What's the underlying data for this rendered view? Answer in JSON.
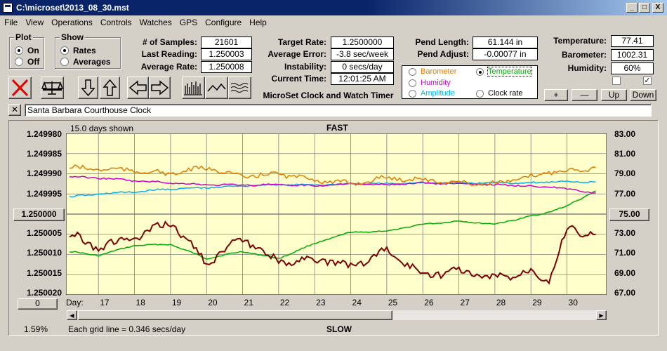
{
  "window": {
    "title": "C:\\microset\\2013_08_30.mst",
    "minimize": "_",
    "maximize": "□",
    "close": "X"
  },
  "menu": [
    "File",
    "View",
    "Operations",
    "Controls",
    "Watches",
    "GPS",
    "Configure",
    "Help"
  ],
  "plot_group": {
    "title": "Plot",
    "on": "On",
    "off": "Off",
    "selected": "On"
  },
  "show_group": {
    "title": "Show",
    "rates": "Rates",
    "averages": "Averages",
    "selected": "Rates"
  },
  "stats": {
    "samples_label": "# of Samples:",
    "samples": "21601",
    "last_label": "Last Reading:",
    "last": "1.250003",
    "avg_label": "Average Rate:",
    "avg": "1.250008",
    "target_label": "Target Rate:",
    "target": "1.2500000",
    "avg_err_label": "Average Error:",
    "avg_err": "-3.8 sec/week",
    "instab_label": "Instability:",
    "instab": "0 secs/day",
    "time_label": "Current Time:",
    "time": "12:01:25 AM",
    "pend_len_label": "Pend Length:",
    "pend_len": "61.144 in",
    "pend_adj_label": "Pend Adjust:",
    "pend_adj": "-0.00077 in",
    "temp_label": "Temperature:",
    "temp": "77.41",
    "baro_label": "Barometer:",
    "baro": "1002.31",
    "hum_label": "Humidity:",
    "hum": "60%"
  },
  "app_name": "MicroSet Clock and Watch Timer",
  "selector": {
    "barometer": "Barometer",
    "temperature": "Temperature",
    "humidity": "Humidity",
    "amplitude": "Amplitude",
    "clock_rate": "Clock rate",
    "selected": "Temperature",
    "colors": {
      "barometer": "#e07b00",
      "temperature": "#00aa00",
      "humidity": "#cc00cc",
      "amplitude": "#00b0f0",
      "clock_rate": "#000000"
    }
  },
  "scale_buttons": {
    "plus": "+",
    "minus": "—",
    "up": "Up",
    "down": "Down"
  },
  "checkboxes": [
    false,
    true
  ],
  "watch_name": "Santa Barbara Courthouse Clock",
  "chart": {
    "days_shown": "15.0 days shown",
    "top_label": "FAST",
    "bottom_label": "SLOW",
    "grid_note": "Each grid line = 0.346 secs/day",
    "percent": "1.59%",
    "left_button": "1.250000",
    "right_button": "75.00",
    "zero_button": "0",
    "day_label": "Day:",
    "left_ticks": [
      "1.249980",
      "1.249985",
      "1.249990",
      "1.249995",
      "1.250000",
      "1.250005",
      "1.250010",
      "1.250015",
      "1.250020"
    ],
    "right_ticks": [
      "83.00",
      "81.00",
      "79.00",
      "77.00",
      "75.00",
      "73.00",
      "71.00",
      "69.00",
      "67.00"
    ],
    "days": [
      "17",
      "18",
      "19",
      "20",
      "21",
      "22",
      "23",
      "24",
      "25",
      "26",
      "27",
      "28",
      "29",
      "30"
    ],
    "bg_color": "#ffffcc",
    "grid_color": "#808080"
  },
  "chart_data": {
    "type": "line",
    "x_label": "Day:",
    "x": [
      16.2,
      17,
      18,
      19,
      20,
      21,
      22,
      23,
      24,
      25,
      26,
      27,
      28,
      29,
      29.5,
      30,
      30.8
    ],
    "ylim_left": [
      1.24998,
      1.25002
    ],
    "ylim_right": [
      67,
      83
    ],
    "series": [
      {
        "name": "Clock rate",
        "axis": "left",
        "color": "#7b0000",
        "values": [
          1.250005,
          1.250008,
          1.250006,
          1.250002,
          1.250012,
          1.250006,
          1.250012,
          1.250011,
          1.250013,
          1.250009,
          1.250015,
          1.250014,
          1.250016,
          1.250014,
          1.250016,
          1.250004,
          1.250005
        ]
      },
      {
        "name": "Barometer",
        "axis": "right",
        "color": "#e07b00",
        "values": [
          79.6,
          79.5,
          79.3,
          79.0,
          79.6,
          78.7,
          79.0,
          78.4,
          78.0,
          78.6,
          78.4,
          78.1,
          78.0,
          78.7,
          79.2,
          79.3,
          79.6
        ]
      },
      {
        "name": "Humidity",
        "axis": "right",
        "color": "#cc00cc",
        "values": [
          78.7,
          78.6,
          78.3,
          78.1,
          77.9,
          77.9,
          77.9,
          77.8,
          78.0,
          77.9,
          78.1,
          78.0,
          77.9,
          77.8,
          77.7,
          77.5,
          77.1
        ]
      },
      {
        "name": "Amplitude",
        "axis": "right",
        "color": "#00b0f0",
        "values": [
          76.7,
          77.0,
          77.2,
          77.5,
          77.6,
          77.8,
          77.9,
          77.9,
          78.0,
          78.0,
          78.1,
          78.1,
          78.1,
          78.1,
          78.2,
          78.2,
          78.2
        ]
      },
      {
        "name": "Temperature",
        "axis": "right",
        "color": "#00aa00",
        "values": [
          71.3,
          70.9,
          71.9,
          72.0,
          70.6,
          71.3,
          70.6,
          72.1,
          73.2,
          73.3,
          74.0,
          74.3,
          74.0,
          74.8,
          75.2,
          75.8,
          77.3
        ]
      }
    ]
  }
}
